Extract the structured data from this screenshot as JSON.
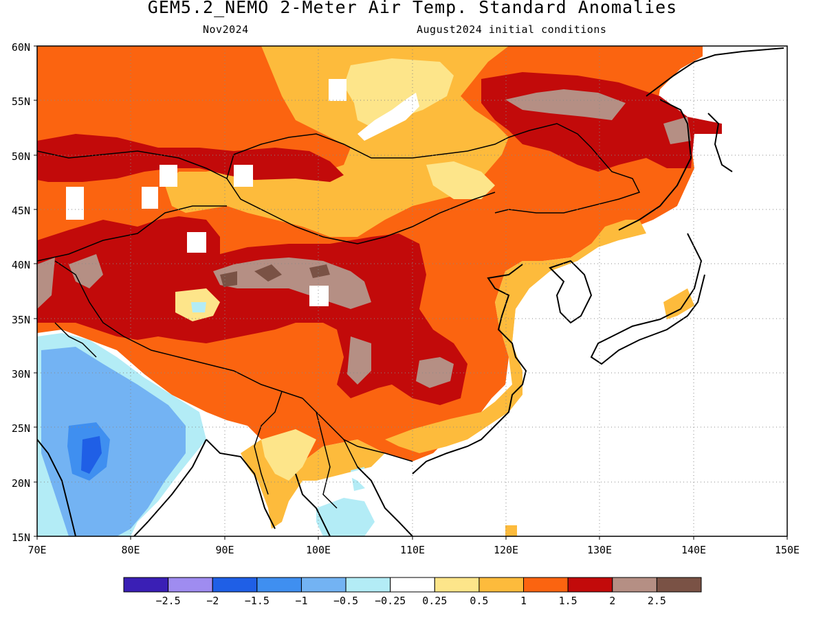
{
  "title": "GEM5.2_NEMO 2-Meter Air Temp. Standard Anomalies",
  "subtitle_left": "Nov2024",
  "subtitle_right": "August2024 initial conditions",
  "map": {
    "lon_range": [
      70,
      150
    ],
    "lat_range": [
      15,
      60
    ],
    "lon_ticks": [
      "70E",
      "80E",
      "90E",
      "100E",
      "110E",
      "120E",
      "130E",
      "140E",
      "150E"
    ],
    "lat_ticks": [
      "15N",
      "20N",
      "25N",
      "30N",
      "35N",
      "40N",
      "45N",
      "50N",
      "55N",
      "60N"
    ],
    "grid": "dotted"
  },
  "legend": {
    "colors": [
      "#3a1fb5",
      "#9f8cf0",
      "#1f5fe6",
      "#3f8ff0",
      "#73b3f3",
      "#b3ecf6",
      "#ffffff",
      "#fde58a",
      "#fdbb3c",
      "#fb6410",
      "#c20a0a",
      "#b58f84",
      "#7a5245"
    ],
    "labels": [
      "-2.5",
      "-2",
      "-1.5",
      "-1",
      "-0.5",
      "-0.25",
      "0.25",
      "0.5",
      "1",
      "1.5",
      "2",
      "2.5"
    ]
  }
}
